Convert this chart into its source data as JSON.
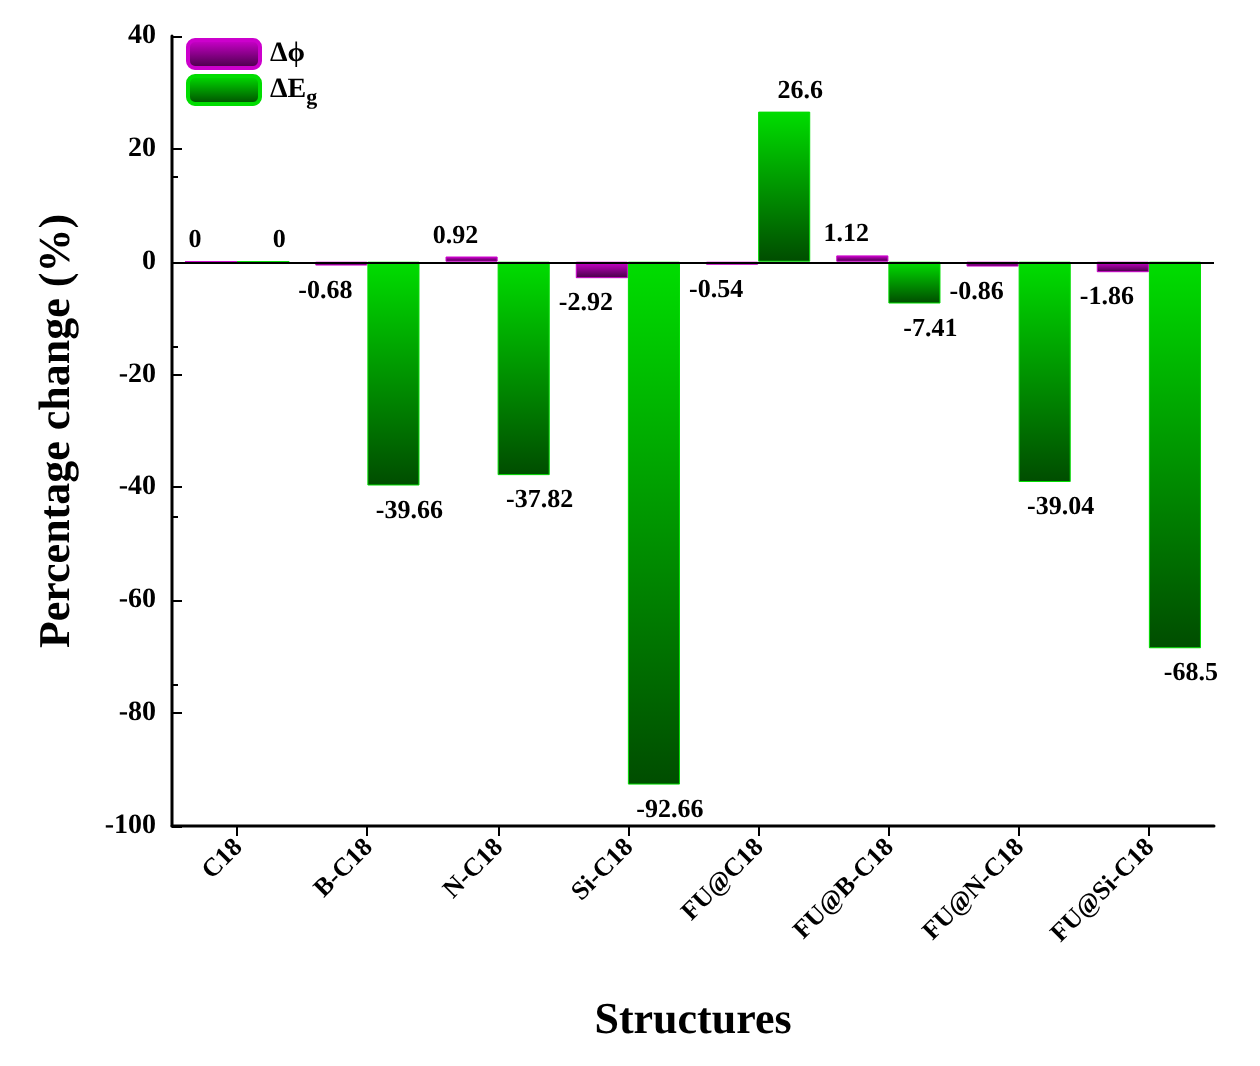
{
  "chart_data": {
    "type": "bar",
    "xlabel": "Structures",
    "ylabel": "Percentage change (%)",
    "categories": [
      "C18",
      "B-C18",
      "N-C18",
      "Si-C18",
      "FU@C18",
      "FU@B-C18",
      "FU@N-C18",
      "FU@Si-C18"
    ],
    "series": [
      {
        "name": "Δϕ",
        "color": "#cc00cc",
        "values": [
          0,
          -0.68,
          0.92,
          -2.92,
          -0.54,
          1.12,
          -0.86,
          -1.86
        ]
      },
      {
        "name": "ΔE$_{g}$",
        "color": "#00dd00",
        "values": [
          0,
          -39.66,
          -37.82,
          -92.66,
          26.6,
          -7.41,
          -39.04,
          -68.5
        ]
      }
    ],
    "ylim": [
      -100,
      40
    ],
    "yticks": [
      -100,
      -80,
      -60,
      -40,
      -20,
      0,
      20,
      40
    ],
    "ref_lines": [
      {
        "axis": "y",
        "value": 0
      }
    ],
    "data_labels": true,
    "legend": "top left",
    "grid": false
  }
}
